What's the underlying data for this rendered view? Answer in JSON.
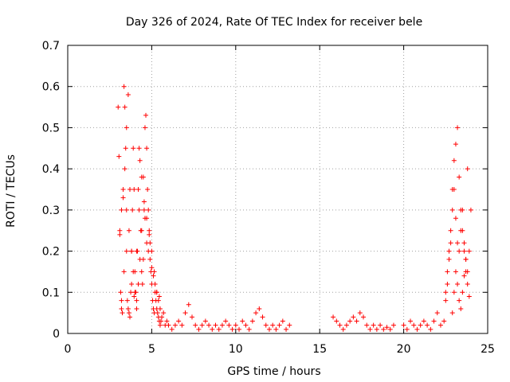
{
  "chart_data": {
    "type": "scatter",
    "title": "Day 326 of 2024, Rate Of TEC Index for receiver bele",
    "xlabel": "GPS time / hours",
    "ylabel": "ROTI / TECUs",
    "xlim": [
      0,
      25
    ],
    "ylim": [
      0,
      0.7
    ],
    "xticks": [
      "0",
      "5",
      "10",
      "15",
      "20",
      "25"
    ],
    "yticks": [
      "0",
      "0.1",
      "0.2",
      "0.3",
      "0.4",
      "0.5",
      "0.6",
      "0.7"
    ],
    "grid": true,
    "marker": "+",
    "series_color": "#ff0000",
    "series": [
      {
        "x": [
          3.0,
          3.05,
          3.1,
          3.15,
          3.2,
          3.25,
          3.3,
          3.35,
          3.4,
          3.45,
          3.5,
          3.55,
          3.6,
          3.65,
          3.7,
          3.75,
          3.8,
          3.85,
          3.9,
          3.95,
          4.0,
          4.05,
          4.1,
          4.15,
          4.2,
          4.25,
          4.3,
          4.35,
          4.4,
          4.45,
          4.5,
          4.55,
          4.6,
          4.65,
          4.7,
          4.75,
          4.8,
          4.85,
          4.9,
          4.95,
          5.0,
          5.05,
          5.1,
          5.15,
          5.2,
          5.25,
          5.3,
          5.35,
          5.4,
          5.45,
          5.5,
          5.55,
          5.6,
          5.7,
          5.8,
          5.9,
          6.0,
          6.2,
          6.4,
          6.6,
          6.8,
          7.0,
          7.2,
          7.4,
          7.6,
          7.8,
          8.0,
          8.2,
          8.4,
          8.6,
          8.8,
          9.0,
          9.2,
          9.4,
          9.6,
          9.8,
          10.0,
          10.2,
          10.4,
          10.6,
          10.8,
          11.0,
          11.2,
          11.4,
          11.6,
          11.8,
          12.0,
          12.2,
          12.4,
          12.6,
          12.8,
          13.0,
          13.2,
          3.1,
          3.2,
          3.3,
          3.4,
          3.5,
          3.6,
          3.7,
          3.8,
          3.9,
          4.0,
          4.1,
          4.2,
          4.3,
          4.4,
          4.5,
          4.6,
          4.7,
          4.8,
          4.9,
          5.0,
          5.1,
          5.2,
          5.3,
          5.4,
          5.5,
          3.2,
          3.35,
          3.5,
          3.65,
          3.8,
          3.95,
          4.1,
          4.25,
          4.4,
          4.55,
          4.7,
          4.85,
          5.0,
          5.15,
          5.3,
          5.45,
          15.8,
          16.0,
          16.2,
          16.4,
          16.6,
          16.8,
          17.0,
          17.2,
          17.4,
          17.6,
          17.8,
          18.0,
          18.2,
          18.4,
          18.6,
          18.8,
          19.0,
          19.2,
          19.4,
          20.0,
          20.2,
          20.4,
          20.6,
          20.8,
          21.0,
          21.2,
          21.4,
          21.6,
          21.8,
          22.0,
          22.2,
          22.4,
          22.5,
          22.6,
          22.7,
          22.8,
          22.9,
          23.0,
          23.1,
          23.2,
          23.3,
          23.4,
          23.5,
          23.6,
          23.7,
          23.8,
          23.9,
          24.0,
          22.5,
          22.6,
          22.7,
          22.8,
          22.9,
          23.0,
          23.1,
          23.2,
          23.3,
          23.4,
          23.5,
          23.6,
          23.7,
          23.8,
          23.9,
          22.9,
          23.0,
          23.1,
          23.2,
          23.3,
          23.4,
          23.5,
          23.6,
          23.7,
          23.8
        ],
        "y": [
          0.55,
          0.43,
          0.25,
          0.1,
          0.06,
          0.05,
          0.33,
          0.6,
          0.55,
          0.45,
          0.3,
          0.08,
          0.06,
          0.05,
          0.04,
          0.1,
          0.2,
          0.3,
          0.45,
          0.35,
          0.15,
          0.1,
          0.08,
          0.2,
          0.35,
          0.45,
          0.42,
          0.25,
          0.15,
          0.12,
          0.18,
          0.3,
          0.5,
          0.53,
          0.45,
          0.35,
          0.3,
          0.25,
          0.22,
          0.15,
          0.12,
          0.08,
          0.06,
          0.05,
          0.1,
          0.08,
          0.06,
          0.05,
          0.04,
          0.03,
          0.02,
          0.03,
          0.04,
          0.05,
          0.02,
          0.03,
          0.02,
          0.01,
          0.02,
          0.03,
          0.02,
          0.05,
          0.07,
          0.04,
          0.02,
          0.01,
          0.02,
          0.03,
          0.02,
          0.01,
          0.02,
          0.01,
          0.02,
          0.03,
          0.02,
          0.01,
          0.02,
          0.01,
          0.03,
          0.02,
          0.01,
          0.03,
          0.05,
          0.06,
          0.04,
          0.02,
          0.01,
          0.02,
          0.01,
          0.02,
          0.03,
          0.01,
          0.02,
          0.24,
          0.3,
          0.35,
          0.4,
          0.5,
          0.58,
          0.35,
          0.2,
          0.15,
          0.1,
          0.06,
          0.12,
          0.18,
          0.25,
          0.38,
          0.28,
          0.22,
          0.2,
          0.18,
          0.16,
          0.14,
          0.12,
          0.1,
          0.08,
          0.06,
          0.08,
          0.15,
          0.2,
          0.25,
          0.12,
          0.09,
          0.2,
          0.3,
          0.38,
          0.32,
          0.28,
          0.24,
          0.2,
          0.15,
          0.1,
          0.09,
          0.04,
          0.03,
          0.02,
          0.01,
          0.02,
          0.03,
          0.04,
          0.03,
          0.05,
          0.04,
          0.02,
          0.01,
          0.02,
          0.01,
          0.02,
          0.01,
          0.015,
          0.01,
          0.02,
          0.02,
          0.01,
          0.03,
          0.02,
          0.01,
          0.02,
          0.03,
          0.02,
          0.01,
          0.03,
          0.05,
          0.02,
          0.03,
          0.1,
          0.15,
          0.2,
          0.25,
          0.3,
          0.35,
          0.28,
          0.22,
          0.2,
          0.25,
          0.3,
          0.22,
          0.18,
          0.15,
          0.2,
          0.3,
          0.08,
          0.12,
          0.18,
          0.22,
          0.35,
          0.42,
          0.46,
          0.5,
          0.38,
          0.3,
          0.25,
          0.2,
          0.15,
          0.12,
          0.09,
          0.05,
          0.1,
          0.15,
          0.12,
          0.08,
          0.06,
          0.1,
          0.14,
          0.18,
          0.4
        ]
      }
    ]
  }
}
